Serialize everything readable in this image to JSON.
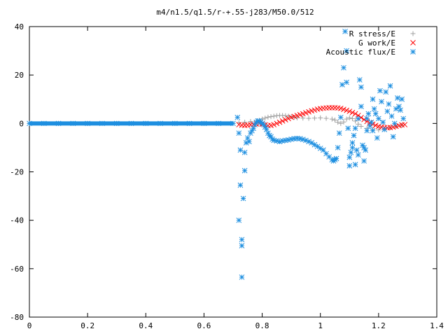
{
  "chart_data": {
    "type": "scatter",
    "title": "m4/n1.5/q1.5/r-+.55-j283/M50.0/512",
    "xlabel": "",
    "ylabel": "",
    "xlim": [
      0,
      1.4
    ],
    "ylim": [
      -80,
      40
    ],
    "x_ticks": [
      "0",
      "0.2",
      "0.4",
      "0.6",
      "0.8",
      "1",
      "1.2",
      "1.4"
    ],
    "y_ticks": [
      "40",
      "20",
      "0",
      "-20",
      "-40",
      "-60",
      "-80"
    ],
    "legend_position": "top-right",
    "grid": false,
    "series": [
      {
        "name": "R stress/E",
        "marker": "+",
        "color": "#a0a0a0",
        "points": [
          [
            0.0,
            0
          ],
          [
            0.1,
            0
          ],
          [
            0.2,
            0
          ],
          [
            0.3,
            0
          ],
          [
            0.4,
            0
          ],
          [
            0.5,
            0
          ],
          [
            0.6,
            0
          ],
          [
            0.7,
            0
          ],
          [
            0.72,
            0.3
          ],
          [
            0.74,
            0.5
          ],
          [
            0.76,
            0.8
          ],
          [
            0.78,
            1.0
          ],
          [
            0.79,
            1.3
          ],
          [
            0.8,
            1.8
          ],
          [
            0.81,
            2.2
          ],
          [
            0.82,
            2.6
          ],
          [
            0.83,
            2.8
          ],
          [
            0.84,
            3.0
          ],
          [
            0.85,
            3.2
          ],
          [
            0.86,
            3.3
          ],
          [
            0.87,
            3.3
          ],
          [
            0.88,
            3.2
          ],
          [
            0.89,
            3.0
          ],
          [
            0.9,
            2.8
          ],
          [
            0.91,
            2.5
          ],
          [
            0.92,
            2.3
          ],
          [
            0.94,
            2.2
          ],
          [
            0.96,
            2.1
          ],
          [
            0.98,
            2.2
          ],
          [
            1.0,
            2.3
          ],
          [
            1.02,
            2.1
          ],
          [
            1.04,
            1.8
          ],
          [
            1.05,
            1.4
          ],
          [
            1.06,
            0.5
          ],
          [
            1.07,
            0.0
          ],
          [
            1.08,
            0.6
          ],
          [
            1.09,
            1.8
          ],
          [
            1.1,
            2.3
          ],
          [
            1.11,
            2.0
          ],
          [
            1.12,
            1.0
          ],
          [
            1.13,
            -0.3
          ],
          [
            1.14,
            -1.2
          ],
          [
            1.16,
            -2.0
          ],
          [
            1.18,
            -2.5
          ],
          [
            1.2,
            -2.7
          ],
          [
            1.22,
            -2.5
          ],
          [
            1.24,
            -1.8
          ],
          [
            1.26,
            -1.2
          ],
          [
            1.28,
            -0.8
          ]
        ]
      },
      {
        "name": "G work/E",
        "marker": "x",
        "color": "#ff0000",
        "points": [
          [
            0.72,
            -0.5
          ],
          [
            0.73,
            -0.7
          ],
          [
            0.74,
            -0.8
          ],
          [
            0.75,
            -0.7
          ],
          [
            0.76,
            -0.6
          ],
          [
            0.77,
            -0.4
          ],
          [
            0.78,
            -0.2
          ],
          [
            0.79,
            0.0
          ],
          [
            0.8,
            -0.3
          ],
          [
            0.81,
            -0.6
          ],
          [
            0.82,
            -0.9
          ],
          [
            0.83,
            -0.8
          ],
          [
            0.84,
            -0.5
          ],
          [
            0.85,
            0.0
          ],
          [
            0.86,
            0.5
          ],
          [
            0.87,
            1.0
          ],
          [
            0.88,
            1.5
          ],
          [
            0.89,
            2.0
          ],
          [
            0.9,
            2.5
          ],
          [
            0.91,
            2.9
          ],
          [
            0.92,
            3.3
          ],
          [
            0.93,
            3.6
          ],
          [
            0.94,
            4.0
          ],
          [
            0.95,
            4.4
          ],
          [
            0.96,
            4.8
          ],
          [
            0.97,
            5.2
          ],
          [
            0.98,
            5.5
          ],
          [
            0.99,
            5.9
          ],
          [
            1.0,
            6.1
          ],
          [
            1.01,
            6.3
          ],
          [
            1.02,
            6.4
          ],
          [
            1.03,
            6.5
          ],
          [
            1.04,
            6.5
          ],
          [
            1.05,
            6.5
          ],
          [
            1.06,
            6.4
          ],
          [
            1.07,
            6.2
          ],
          [
            1.08,
            5.8
          ],
          [
            1.09,
            5.4
          ],
          [
            1.1,
            5.0
          ],
          [
            1.11,
            4.5
          ],
          [
            1.12,
            4.0
          ],
          [
            1.13,
            3.3
          ],
          [
            1.14,
            2.4
          ],
          [
            1.15,
            1.6
          ],
          [
            1.16,
            0.8
          ],
          [
            1.17,
            0.2
          ],
          [
            1.18,
            -0.3
          ],
          [
            1.19,
            -0.8
          ],
          [
            1.2,
            -1.2
          ],
          [
            1.21,
            -1.5
          ],
          [
            1.22,
            -1.7
          ],
          [
            1.23,
            -1.8
          ],
          [
            1.24,
            -1.7
          ],
          [
            1.25,
            -1.5
          ],
          [
            1.26,
            -1.2
          ],
          [
            1.27,
            -0.9
          ],
          [
            1.28,
            -0.6
          ],
          [
            1.29,
            -0.5
          ]
        ]
      },
      {
        "name": "Acoustic flux/E",
        "marker": "*",
        "color": "#1e8fe0",
        "points": [
          [
            0.0,
            0
          ],
          [
            0.05,
            0
          ],
          [
            0.1,
            0
          ],
          [
            0.15,
            0
          ],
          [
            0.2,
            0
          ],
          [
            0.25,
            0
          ],
          [
            0.3,
            0
          ],
          [
            0.35,
            0
          ],
          [
            0.4,
            0
          ],
          [
            0.45,
            0
          ],
          [
            0.5,
            0
          ],
          [
            0.55,
            0
          ],
          [
            0.6,
            0
          ],
          [
            0.65,
            0
          ],
          [
            0.7,
            0
          ],
          [
            0.715,
            2.5
          ],
          [
            0.72,
            -4.0
          ],
          [
            0.72,
            -40.0
          ],
          [
            0.725,
            -25.5
          ],
          [
            0.725,
            -11.0
          ],
          [
            0.73,
            -50.5
          ],
          [
            0.73,
            -48.0
          ],
          [
            0.73,
            -63.5
          ],
          [
            0.735,
            -31.0
          ],
          [
            0.74,
            -19.5
          ],
          [
            0.74,
            -12.0
          ],
          [
            0.745,
            -8.0
          ],
          [
            0.75,
            -6.0
          ],
          [
            0.755,
            -7.5
          ],
          [
            0.76,
            -4.0
          ],
          [
            0.765,
            -3.0
          ],
          [
            0.77,
            -2.0
          ],
          [
            0.775,
            -0.5
          ],
          [
            0.78,
            0.5
          ],
          [
            0.785,
            1.0
          ],
          [
            0.79,
            1.0
          ],
          [
            0.795,
            0.5
          ],
          [
            0.8,
            0.0
          ],
          [
            0.805,
            -0.5
          ],
          [
            0.81,
            -1.5
          ],
          [
            0.815,
            -2.5
          ],
          [
            0.82,
            -4.0
          ],
          [
            0.825,
            -5.0
          ],
          [
            0.83,
            -5.5
          ],
          [
            0.835,
            -6.5
          ],
          [
            0.84,
            -7.0
          ],
          [
            0.85,
            -7.2
          ],
          [
            0.86,
            -7.5
          ],
          [
            0.87,
            -7.2
          ],
          [
            0.88,
            -7.0
          ],
          [
            0.89,
            -6.8
          ],
          [
            0.9,
            -6.5
          ],
          [
            0.91,
            -6.3
          ],
          [
            0.92,
            -6.2
          ],
          [
            0.93,
            -6.3
          ],
          [
            0.94,
            -6.6
          ],
          [
            0.95,
            -7.0
          ],
          [
            0.96,
            -7.5
          ],
          [
            0.97,
            -8.0
          ],
          [
            0.98,
            -8.8
          ],
          [
            0.99,
            -9.5
          ],
          [
            1.0,
            -10.3
          ],
          [
            1.01,
            -11.0
          ],
          [
            1.02,
            -12.5
          ],
          [
            1.03,
            -13.8
          ],
          [
            1.04,
            -15.0
          ],
          [
            1.045,
            -15.5
          ],
          [
            1.05,
            -15.0
          ],
          [
            1.055,
            -14.5
          ],
          [
            1.06,
            -10.0
          ],
          [
            1.065,
            -4.0
          ],
          [
            1.07,
            2.5
          ],
          [
            1.075,
            16.0
          ],
          [
            1.08,
            23.0
          ],
          [
            1.085,
            38.0
          ],
          [
            1.09,
            30.0
          ],
          [
            1.09,
            17.0
          ],
          [
            1.095,
            -2.0
          ],
          [
            1.1,
            -14.0
          ],
          [
            1.1,
            -17.5
          ],
          [
            1.105,
            -12.0
          ],
          [
            1.11,
            -10.0
          ],
          [
            1.11,
            -8.0
          ],
          [
            1.115,
            -5.0
          ],
          [
            1.12,
            -2.0
          ],
          [
            1.12,
            -17.0
          ],
          [
            1.125,
            -11.0
          ],
          [
            1.13,
            -13.0
          ],
          [
            1.13,
            2.0
          ],
          [
            1.135,
            18.0
          ],
          [
            1.14,
            15.0
          ],
          [
            1.14,
            7.0
          ],
          [
            1.145,
            -9.0
          ],
          [
            1.15,
            -10.0
          ],
          [
            1.15,
            -15.5
          ],
          [
            1.155,
            -11.0
          ],
          [
            1.16,
            2.0
          ],
          [
            1.16,
            -3.0
          ],
          [
            1.165,
            4.0
          ],
          [
            1.17,
            -1.0
          ],
          [
            1.175,
            0.5
          ],
          [
            1.18,
            10.0
          ],
          [
            1.18,
            -3.0
          ],
          [
            1.185,
            6.0
          ],
          [
            1.19,
            4.0
          ],
          [
            1.195,
            -6.0
          ],
          [
            1.2,
            2.0
          ],
          [
            1.205,
            13.5
          ],
          [
            1.21,
            9.0
          ],
          [
            1.215,
            0.5
          ],
          [
            1.22,
            -2.5
          ],
          [
            1.225,
            13.0
          ],
          [
            1.23,
            5.0
          ],
          [
            1.235,
            8.0
          ],
          [
            1.24,
            15.5
          ],
          [
            1.245,
            3.0
          ],
          [
            1.25,
            -5.5
          ],
          [
            1.255,
            0.0
          ],
          [
            1.26,
            6.0
          ],
          [
            1.265,
            10.5
          ],
          [
            1.27,
            7.0
          ],
          [
            1.275,
            5.5
          ],
          [
            1.28,
            10.0
          ],
          [
            1.285,
            2.0
          ]
        ]
      }
    ]
  }
}
